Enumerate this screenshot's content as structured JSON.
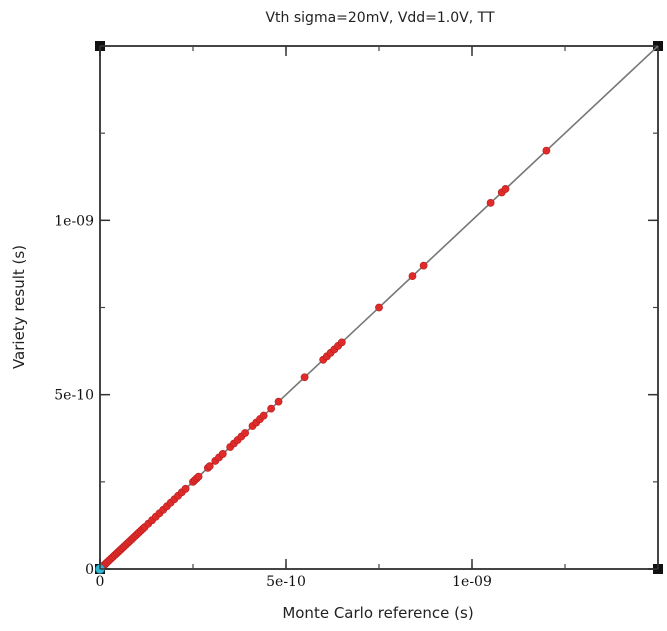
{
  "chart_data": {
    "type": "scatter",
    "title": "Vth sigma=20mV, Vdd=1.0V, TT",
    "xlabel": "Monte Carlo reference (s)",
    "ylabel": "Variety result (s)",
    "xlim": [
      0,
      1.5e-09
    ],
    "ylim": [
      0,
      1.5e-09
    ],
    "x_ticks": [
      0,
      5e-10,
      1e-09
    ],
    "x_tick_labels": [
      "0",
      "5e-10",
      "1e-09"
    ],
    "y_ticks": [
      0,
      5e-10,
      1e-09
    ],
    "y_tick_labels": [
      "0",
      "5e-10",
      "1e-09"
    ],
    "grid": false,
    "reference_line": {
      "x": [
        0,
        1.5e-09
      ],
      "y": [
        0,
        1.5e-09
      ],
      "color": "#777777"
    },
    "series": [
      {
        "color": "#e02b2b",
        "x": [
          2e-12,
          5e-12,
          8e-12,
          1.2e-11,
          1.6e-11,
          2e-11,
          2.5e-11,
          3e-11,
          3.5e-11,
          4e-11,
          4.5e-11,
          5e-11,
          5.5e-11,
          6e-11,
          6.5e-11,
          7e-11,
          7.5e-11,
          8e-11,
          8.5e-11,
          9e-11,
          9.5e-11,
          1e-10,
          1.05e-10,
          1.1e-10,
          1.15e-10,
          1.2e-10,
          1.3e-10,
          1.4e-10,
          1.5e-10,
          1.6e-10,
          1.7e-10,
          1.8e-10,
          1.9e-10,
          2e-10,
          2.1e-10,
          2.2e-10,
          2.3e-10,
          2.5e-10,
          2.55e-10,
          2.6e-10,
          2.65e-10,
          2.9e-10,
          2.95e-10,
          3.1e-10,
          3.2e-10,
          3.3e-10,
          3.5e-10,
          3.6e-10,
          3.7e-10,
          3.8e-10,
          3.9e-10,
          4.1e-10,
          4.2e-10,
          4.3e-10,
          4.4e-10,
          4.6e-10,
          4.8e-10,
          5.5e-10,
          6e-10,
          6.1e-10,
          6.2e-10,
          6.3e-10,
          6.4e-10,
          6.5e-10,
          7.5e-10,
          8.4e-10,
          8.7e-10,
          1.05e-09,
          1.08e-09,
          1.09e-09,
          1.2e-09
        ],
        "y": [
          2e-12,
          5e-12,
          8e-12,
          1.2e-11,
          1.6e-11,
          2e-11,
          2.5e-11,
          3e-11,
          3.5e-11,
          4e-11,
          4.5e-11,
          5e-11,
          5.5e-11,
          6e-11,
          6.5e-11,
          7e-11,
          7.5e-11,
          8e-11,
          8.5e-11,
          9e-11,
          9.5e-11,
          1e-10,
          1.05e-10,
          1.1e-10,
          1.15e-10,
          1.2e-10,
          1.3e-10,
          1.4e-10,
          1.5e-10,
          1.6e-10,
          1.7e-10,
          1.8e-10,
          1.9e-10,
          2e-10,
          2.1e-10,
          2.2e-10,
          2.3e-10,
          2.5e-10,
          2.55e-10,
          2.6e-10,
          2.65e-10,
          2.9e-10,
          2.95e-10,
          3.1e-10,
          3.2e-10,
          3.3e-10,
          3.5e-10,
          3.6e-10,
          3.7e-10,
          3.8e-10,
          3.9e-10,
          4.1e-10,
          4.2e-10,
          4.3e-10,
          4.4e-10,
          4.6e-10,
          4.8e-10,
          5.5e-10,
          6e-10,
          6.1e-10,
          6.2e-10,
          6.3e-10,
          6.4e-10,
          6.5e-10,
          7.5e-10,
          8.4e-10,
          8.7e-10,
          1.05e-09,
          1.08e-09,
          1.09e-09,
          1.2e-09
        ]
      },
      {
        "color": "#2fb8d4",
        "x": [
          0
        ],
        "y": [
          0
        ]
      }
    ]
  }
}
